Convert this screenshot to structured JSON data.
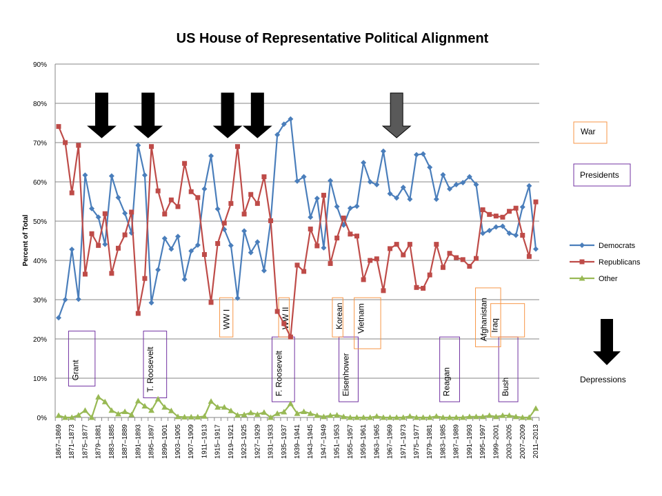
{
  "colors": {
    "democrats": "#4a7ebb",
    "republicans": "#be4b48",
    "other": "#98b954",
    "war_box": "#f79646",
    "president_box": "#7030a0",
    "grid": "#868686",
    "axis": "#868686",
    "arrow": "#000000",
    "arrow_gray": "#595959"
  },
  "chart_data": {
    "type": "line",
    "title": "US House of Representative Political Alignment",
    "ylabel": "Percent of Total",
    "xlabel": "",
    "ylim": [
      0,
      90
    ],
    "yticks": [
      "0%",
      "10%",
      "20%",
      "30%",
      "40%",
      "50%",
      "60%",
      "70%",
      "80%",
      "90%"
    ],
    "grid": true,
    "legend_position": "right",
    "x": [
      "1867–1869",
      "1869–1871",
      "1871–1873",
      "1873–1875",
      "1875–1877",
      "1877–1879",
      "1879–1881",
      "1881–1883",
      "1883–1885",
      "1885–1887",
      "1887–1889",
      "1889–1891",
      "1891–1893",
      "1893–1895",
      "1895–1897",
      "1897–1899",
      "1899–1901",
      "1901–1903",
      "1903–1905",
      "1905–1907",
      "1907–1909",
      "1909–1911",
      "1911–1913",
      "1913–1915",
      "1915–1917",
      "1917–1919",
      "1919–1921",
      "1921–1923",
      "1923–1925",
      "1925–1927",
      "1927–1929",
      "1929–1931",
      "1931–1933",
      "1933–1935",
      "1935–1937",
      "1937–1939",
      "1939–1941",
      "1941–1943",
      "1943–1945",
      "1945–1947",
      "1947–1949",
      "1949–1951",
      "1951–1953",
      "1953–1955",
      "1955–1957",
      "1957–1959",
      "1959–1961",
      "1961–1963",
      "1963–1965",
      "1965–1967",
      "1967–1969",
      "1969–1971",
      "1971–1973",
      "1973–1975",
      "1975–1977",
      "1977–1979",
      "1979–1981",
      "1981–1983",
      "1983–1985",
      "1985–1987",
      "1987–1989",
      "1989–1991",
      "1991–1993",
      "1993–1995",
      "1995–1997",
      "1997–1999",
      "1999–2001",
      "2001–2003",
      "2003–2005",
      "2005–2007",
      "2007–2009",
      "2009–2011",
      "2011–2013"
    ],
    "xtick_labels": [
      "1867–1869",
      "1871–1873",
      "1875–1877",
      "1879–1881",
      "1883–1885",
      "1887–1889",
      "1891–1893",
      "1895–1897",
      "1899–1901",
      "1903–1905",
      "1907–1909",
      "1911–1913",
      "1915–1917",
      "1919–1921",
      "1923–1925",
      "1927–1929",
      "1931–1933",
      "1935–1937",
      "1939–1941",
      "1943–1945",
      "1947–1949",
      "1951–1953",
      "1955–1957",
      "1959–1961",
      "1963–1965",
      "1967–1969",
      "1971–1973",
      "1975–1977",
      "1979–1981",
      "1983–1985",
      "1987–1989",
      "1991–1993",
      "1995–1997",
      "1999–2001",
      "2003–2005",
      "2007–2009",
      "2011–2013"
    ],
    "series": [
      {
        "name": "Democrats",
        "color_key": "democrats",
        "marker": "diamond",
        "values": [
          25.4,
          30.0,
          42.8,
          30.1,
          61.7,
          53.2,
          51.0,
          44.1,
          61.5,
          56.0,
          52.0,
          47.0,
          69.3,
          61.7,
          29.2,
          37.6,
          45.6,
          42.9,
          46.1,
          35.2,
          42.4,
          43.9,
          58.2,
          66.6,
          53.1,
          47.9,
          43.8,
          30.4,
          47.5,
          42.0,
          44.7,
          37.4,
          50.1,
          72.0,
          74.7,
          76.0,
          60.2,
          61.3,
          51.0,
          55.8,
          43.2,
          60.3,
          53.7,
          49.0,
          53.3,
          53.8,
          64.9,
          60.0,
          59.3,
          67.8,
          57.0,
          55.9,
          58.6,
          55.6,
          66.9,
          67.1,
          63.7,
          55.6,
          61.8,
          58.2,
          59.3,
          59.8,
          61.3,
          59.3,
          46.9,
          47.6,
          48.5,
          48.7,
          46.9,
          46.4,
          53.6,
          59.0,
          42.9
        ]
      },
      {
        "name": "Republicans",
        "color_key": "republicans",
        "marker": "square",
        "values": [
          74.1,
          70.0,
          57.2,
          69.3,
          36.5,
          46.8,
          43.8,
          51.9,
          36.7,
          43.1,
          46.5,
          52.3,
          26.5,
          35.4,
          69.0,
          57.7,
          51.8,
          55.4,
          53.7,
          64.7,
          57.5,
          56.0,
          41.5,
          29.3,
          44.3,
          49.5,
          54.5,
          69.0,
          51.8,
          56.8,
          54.5,
          61.3,
          50.1,
          27.0,
          23.9,
          20.5,
          38.8,
          37.2,
          48.0,
          43.7,
          56.6,
          39.2,
          45.7,
          50.8,
          46.7,
          46.2,
          35.1,
          40.0,
          40.4,
          32.3,
          43.0,
          44.1,
          41.4,
          44.1,
          33.1,
          32.9,
          36.3,
          44.1,
          38.2,
          41.8,
          40.7,
          40.2,
          38.5,
          40.5,
          52.9,
          51.7,
          51.3,
          51.0,
          52.5,
          53.3,
          46.4,
          41.0,
          54.9
        ]
      },
      {
        "name": "Other",
        "color_key": "other",
        "marker": "triangle",
        "values": [
          0.5,
          0.0,
          0.0,
          0.6,
          1.8,
          0.0,
          5.2,
          4.0,
          1.8,
          0.9,
          1.5,
          0.7,
          4.2,
          2.9,
          1.8,
          4.7,
          2.6,
          1.7,
          0.2,
          0.1,
          0.1,
          0.1,
          0.3,
          4.1,
          2.6,
          2.6,
          1.7,
          0.6,
          0.7,
          1.2,
          0.8,
          1.3,
          0.0,
          1.0,
          1.4,
          3.5,
          1.0,
          1.5,
          1.0,
          0.5,
          0.2,
          0.5,
          0.6,
          0.2,
          0.0,
          0.0,
          0.0,
          0.0,
          0.3,
          0.0,
          0.0,
          0.0,
          0.0,
          0.3,
          0.0,
          0.0,
          0.0,
          0.3,
          0.0,
          0.0,
          0.0,
          0.0,
          0.2,
          0.2,
          0.2,
          0.5,
          0.2,
          0.5,
          0.5,
          0.2,
          0.0,
          0.0,
          2.3
        ]
      }
    ]
  },
  "legend": {
    "entries": [
      {
        "label": "Democrats",
        "color_key": "democrats",
        "marker": "diamond"
      },
      {
        "label": "Republicans",
        "color_key": "republicans",
        "marker": "square"
      },
      {
        "label": "Other",
        "color_key": "other",
        "marker": "triangle"
      }
    ]
  },
  "key_boxes": {
    "war": "War",
    "presidents": "Presidents",
    "depressions": "Depressions"
  },
  "annotations": {
    "presidents": [
      "Grant",
      "T. Roosevelt",
      "F. Roosevelt",
      "Eisenhower",
      "Reagan",
      "Bush"
    ],
    "wars": [
      "WW I",
      "WW II",
      "Korean",
      "Vietnam",
      "Afghanistan",
      "Iraq"
    ],
    "depression_arrows": [
      {
        "index": 6.5,
        "style": "black"
      },
      {
        "index": 13.5,
        "style": "black"
      },
      {
        "index": 25.5,
        "style": "black"
      },
      {
        "index": 30.0,
        "style": "black"
      },
      {
        "index": 51.0,
        "style": "gray"
      }
    ]
  }
}
